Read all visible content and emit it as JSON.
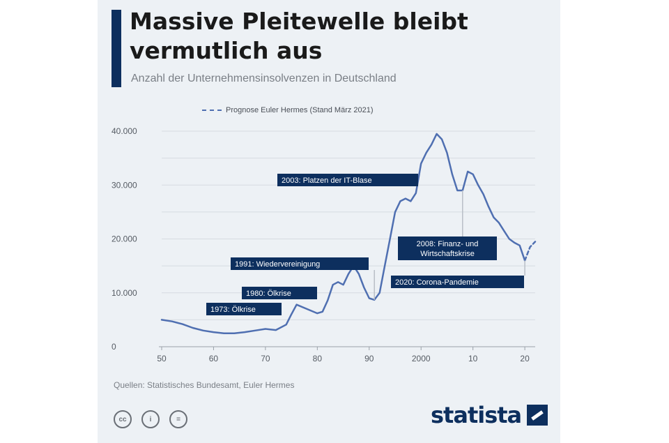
{
  "title": "Massive Pleitewelle bleibt vermutlich aus",
  "subtitle": "Anzahl der Unternehmensinsolvenzen in Deutschland",
  "source": "Quellen: Statistisches Bundesamt, Euler Hermes",
  "brand": {
    "name": "statista",
    "logo_icon": "statista-logo-icon"
  },
  "license_icons": [
    "cc-icon",
    "by-icon",
    "equal-icon"
  ],
  "license_labels": [
    "cc",
    "i",
    "="
  ],
  "colors": {
    "line": "#4f6fb1",
    "forecast": "#4f6fb1",
    "annotation": "#0d2f5e",
    "grid": "#d6dbe1",
    "title_bar": "#0d2f5e"
  },
  "chart_data": {
    "type": "line",
    "title": "Massive Pleitewelle bleibt vermutlich aus",
    "subtitle": "Anzahl der Unternehmensinsolvenzen in Deutschland",
    "legend": {
      "label": "Prognose Euler Hermes (Stand März 2021)",
      "placement": "top"
    },
    "xlim": [
      1950,
      2022
    ],
    "ylim": [
      0,
      40000
    ],
    "y_ticks": [
      0,
      10000,
      20000,
      30000,
      40000
    ],
    "y_tick_labels": [
      "0",
      "10.000",
      "20.000",
      "30.000",
      "40.000"
    ],
    "x_ticks": [
      1950,
      1960,
      1970,
      1980,
      1990,
      2000,
      2010,
      2020
    ],
    "x_tick_labels": [
      "50",
      "60",
      "70",
      "80",
      "90",
      "2000",
      "10",
      "20"
    ],
    "grid": true,
    "series": [
      {
        "type": "actual",
        "x": [
          1950,
          1952,
          1954,
          1956,
          1958,
          1960,
          1962,
          1964,
          1966,
          1968,
          1970,
          1972,
          1974,
          1975,
          1976,
          1978,
          1980,
          1981,
          1982,
          1983,
          1984,
          1985,
          1986,
          1987,
          1988,
          1989,
          1990,
          1991,
          1992,
          1993,
          1994,
          1995,
          1996,
          1997,
          1998,
          1999,
          2000,
          2001,
          2002,
          2003,
          2004,
          2005,
          2006,
          2007,
          2008,
          2009,
          2010,
          2011,
          2012,
          2013,
          2014,
          2015,
          2016,
          2017,
          2018,
          2019,
          2020
        ],
        "y": [
          5000,
          4700,
          4200,
          3500,
          3000,
          2700,
          2500,
          2500,
          2700,
          3000,
          3300,
          3100,
          4100,
          6000,
          7800,
          7000,
          6200,
          6500,
          8600,
          11500,
          12000,
          11500,
          13500,
          15000,
          13500,
          11000,
          9000,
          8700,
          10000,
          15000,
          20000,
          25000,
          27000,
          27500,
          27000,
          28500,
          34000,
          36000,
          37500,
          39500,
          38500,
          36000,
          32000,
          29000,
          29000,
          32500,
          32000,
          30000,
          28300,
          26000,
          24000,
          23000,
          21500,
          20000,
          19300,
          18800,
          16000
        ]
      },
      {
        "type": "forecast",
        "name": "Prognose Euler Hermes (Stand März 2021)",
        "x": [
          2020,
          2021,
          2022
        ],
        "y": [
          16000,
          18500,
          19500
        ]
      }
    ],
    "annotations": [
      {
        "label": "1973: Ölkrise",
        "x": 1973
      },
      {
        "label": "1980: Ölkrise",
        "x": 1980
      },
      {
        "label": "1991: Wiedervereinigung",
        "x": 1991
      },
      {
        "label": "2003: Platzen der IT-Blase",
        "x": 2003
      },
      {
        "label": "2008: Finanz- und Wirtschaftskrise",
        "x": 2008
      },
      {
        "label": "2020: Corona-Pandemie",
        "x": 2020
      }
    ]
  }
}
